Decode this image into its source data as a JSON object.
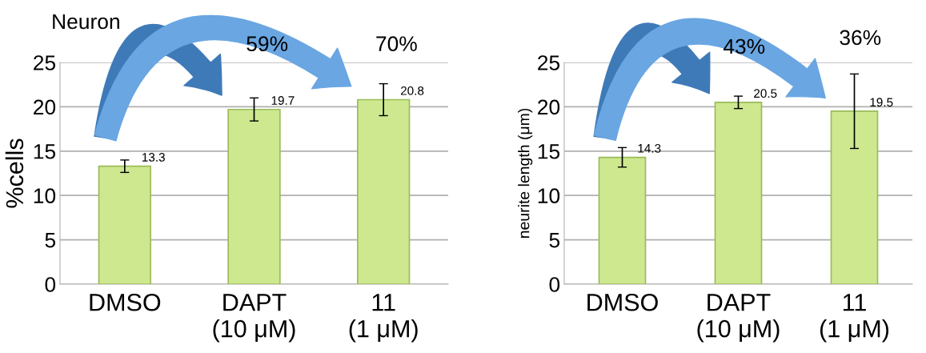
{
  "chart_data": [
    {
      "type": "bar",
      "ylabel": "%cells",
      "categories": [
        "DMSO",
        "DAPT\n(10 μM)",
        "11\n(1 μM)"
      ],
      "values": [
        13.3,
        19.7,
        20.8
      ],
      "errors": [
        0.7,
        1.3,
        1.8
      ],
      "color": "#cde88f",
      "ylim": [
        0,
        25
      ],
      "yticks": [
        0,
        5,
        10,
        15,
        20,
        25
      ],
      "grid": "y",
      "data_labels": true,
      "annotations": [
        "Neuron",
        "59%",
        "70%"
      ]
    },
    {
      "type": "bar",
      "ylabel": "neurite length (μm)",
      "categories": [
        "DMSO",
        "DAPT\n(10 μM)",
        "11\n(1 μM)"
      ],
      "values": [
        14.3,
        20.5,
        19.5
      ],
      "errors": [
        1.1,
        0.7,
        4.2
      ],
      "color": "#cde88f",
      "ylim": [
        0,
        25
      ],
      "yticks": [
        0,
        5,
        10,
        15,
        20,
        25
      ],
      "grid": "y",
      "data_labels": true,
      "annotations": [
        "43%",
        "36%"
      ]
    }
  ]
}
